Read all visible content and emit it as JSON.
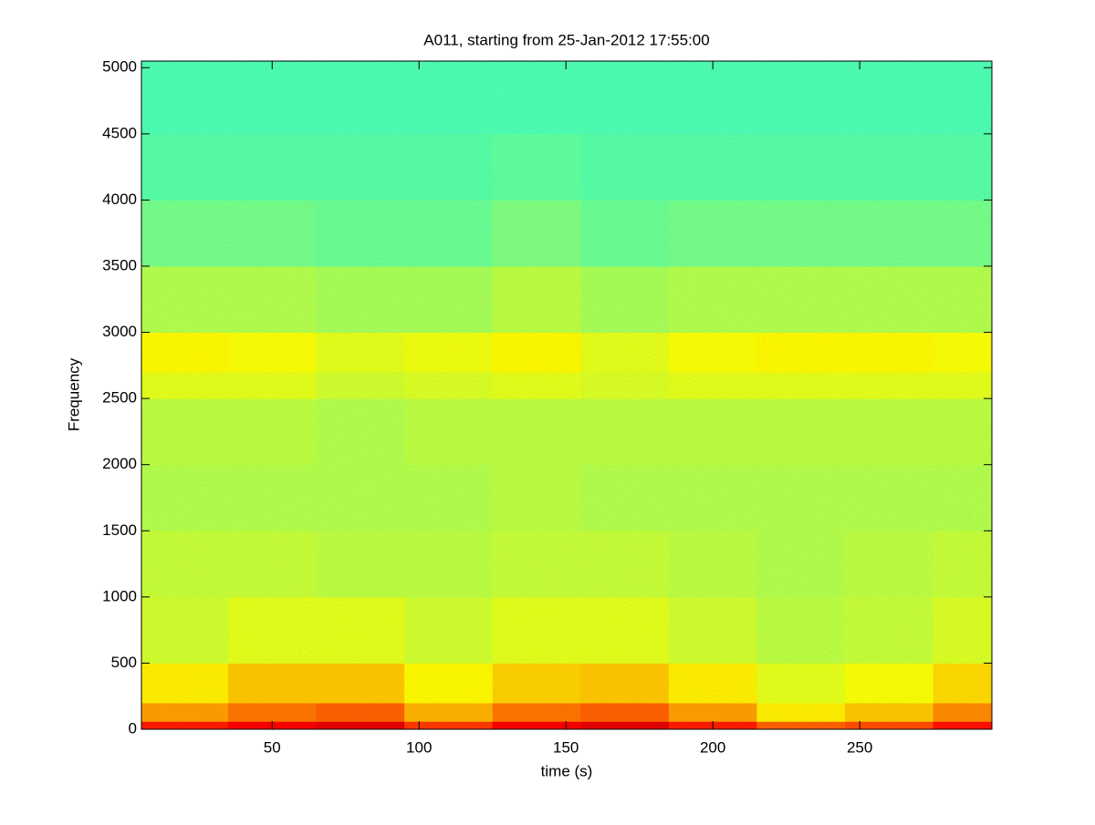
{
  "chart_data": {
    "type": "spectrogram",
    "title": "A011, starting from 25-Jan-2012 17:55:00",
    "x_label": "time (s)",
    "y_label": "Frequency",
    "xlim": [
      5.5,
      295
    ],
    "ylim": [
      0,
      5050
    ],
    "xticks": [
      50,
      100,
      150,
      200,
      250
    ],
    "yticks": [
      0,
      500,
      1000,
      1500,
      2000,
      2500,
      3000,
      3500,
      4000,
      4500,
      5000
    ],
    "colormap": "jet",
    "clim": [
      0,
      1
    ],
    "x_edges": [
      5.5,
      35,
      65,
      95,
      125,
      155,
      185,
      215,
      245,
      275,
      295
    ],
    "y_edges": [
      0,
      60,
      200,
      500,
      1000,
      1500,
      2000,
      2500,
      2700,
      3000,
      3500,
      4000,
      4500,
      5050
    ],
    "values": [
      [
        0.85,
        0.88,
        0.9,
        0.82,
        0.88,
        0.9,
        0.85,
        0.78,
        0.8,
        0.86
      ],
      [
        0.72,
        0.76,
        0.78,
        0.7,
        0.76,
        0.78,
        0.72,
        0.64,
        0.68,
        0.74
      ],
      [
        0.64,
        0.68,
        0.68,
        0.63,
        0.67,
        0.68,
        0.64,
        0.6,
        0.62,
        0.66
      ],
      [
        0.58,
        0.6,
        0.6,
        0.58,
        0.6,
        0.6,
        0.58,
        0.56,
        0.57,
        0.59
      ],
      [
        0.57,
        0.57,
        0.56,
        0.56,
        0.57,
        0.57,
        0.56,
        0.55,
        0.56,
        0.57
      ],
      [
        0.55,
        0.55,
        0.55,
        0.55,
        0.56,
        0.55,
        0.55,
        0.55,
        0.55,
        0.55
      ],
      [
        0.56,
        0.56,
        0.55,
        0.56,
        0.56,
        0.56,
        0.56,
        0.56,
        0.56,
        0.56
      ],
      [
        0.6,
        0.6,
        0.58,
        0.59,
        0.6,
        0.59,
        0.6,
        0.6,
        0.6,
        0.6
      ],
      [
        0.63,
        0.62,
        0.6,
        0.61,
        0.63,
        0.6,
        0.62,
        0.63,
        0.63,
        0.62
      ],
      [
        0.55,
        0.55,
        0.54,
        0.54,
        0.56,
        0.54,
        0.55,
        0.55,
        0.55,
        0.55
      ],
      [
        0.49,
        0.49,
        0.48,
        0.48,
        0.5,
        0.48,
        0.49,
        0.49,
        0.49,
        0.49
      ],
      [
        0.46,
        0.46,
        0.46,
        0.46,
        0.47,
        0.46,
        0.46,
        0.46,
        0.46,
        0.46
      ],
      [
        0.45,
        0.45,
        0.45,
        0.45,
        0.45,
        0.45,
        0.45,
        0.45,
        0.45,
        0.45
      ]
    ]
  }
}
